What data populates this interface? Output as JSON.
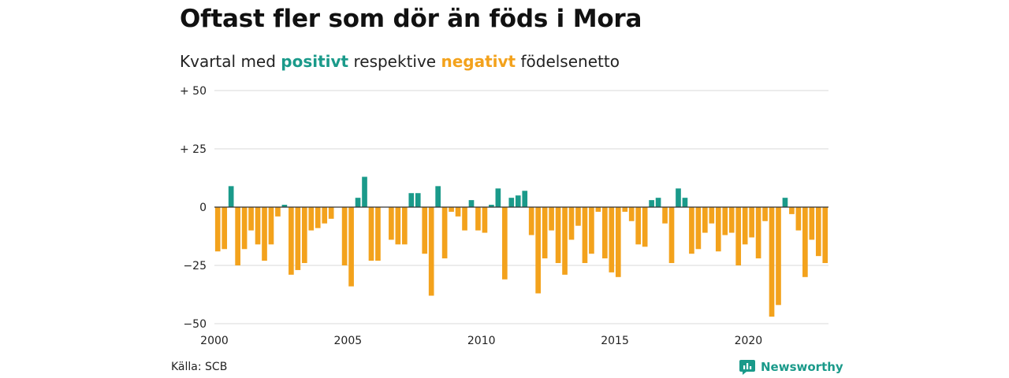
{
  "title": "Oftast fler som dör än föds i Mora",
  "subtitle": {
    "prefix": "Kvartal med ",
    "positive": "positivt",
    "middle": " respektive ",
    "negative": "negativt",
    "suffix": " födelsenetto"
  },
  "source": "Källa: SCB",
  "brand": {
    "name": "Newsworthy",
    "icon": "newsworthy-logo-icon"
  },
  "colors": {
    "positive": "#1a9a8a",
    "negative": "#f3a21c",
    "grid": "#d9d9d9",
    "zero": "#333333"
  },
  "chart_data": {
    "type": "bar",
    "x_start": 2000,
    "x_end": 2023,
    "period": "quarter",
    "ylim": [
      -50,
      50
    ],
    "y_ticks": [
      50,
      25,
      0,
      -25,
      -50
    ],
    "y_tick_labels": [
      "+ 50",
      "+ 25",
      "0",
      "−25",
      "−50"
    ],
    "x_ticks": [
      2000,
      2005,
      2010,
      2015,
      2020
    ],
    "x_tick_labels": [
      "2000",
      "2005",
      "2010",
      "2015",
      "2020"
    ],
    "values": [
      -19,
      -18,
      9,
      -25,
      -18,
      -10,
      -16,
      -23,
      -16,
      -4,
      1,
      -29,
      -27,
      -24,
      -10,
      -9,
      -7,
      -5,
      0,
      -25,
      -34,
      4,
      13,
      -23,
      -23,
      0,
      -14,
      -16,
      -16,
      6,
      6,
      -20,
      -38,
      9,
      -22,
      -2,
      -4,
      -10,
      3,
      -10,
      -11,
      1,
      8,
      -31,
      4,
      5,
      7,
      -12,
      -37,
      -22,
      -10,
      -24,
      -29,
      -14,
      -8,
      -24,
      -20,
      -2,
      -22,
      -28,
      -30,
      -2,
      -6,
      -16,
      -17,
      3,
      4,
      -7,
      -24,
      8,
      4,
      -20,
      -18,
      -11,
      -7,
      -19,
      -12,
      -11,
      -25,
      -16,
      -13,
      -22,
      -6,
      -47,
      -42,
      4,
      -3,
      -10,
      -30,
      -14,
      -21,
      -24
    ]
  }
}
